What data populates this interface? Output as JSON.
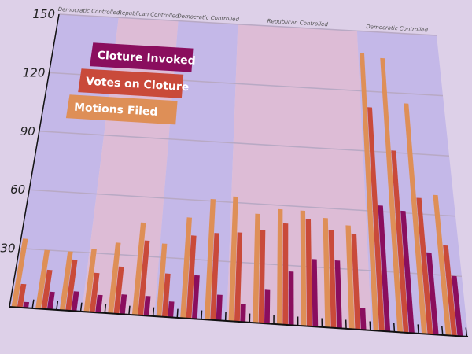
{
  "chart_data": {
    "type": "bar",
    "title": "",
    "xlabel": "",
    "ylabel": "",
    "ylim": [
      0,
      150
    ],
    "yticks": [
      30,
      60,
      90,
      120,
      150
    ],
    "grid": true,
    "legend_placement": "top-left",
    "series": [
      {
        "name": "Motions Filed",
        "color": "#de8f57",
        "values": [
          35,
          30,
          30,
          32,
          36,
          47,
          37,
          51,
          61,
          63,
          55,
          58,
          58,
          55,
          52,
          139,
          137,
          115,
          70
        ]
      },
      {
        "name": "Votes on Cloture",
        "color": "#c94a3a",
        "values": [
          12,
          20,
          26,
          20,
          24,
          38,
          22,
          42,
          44,
          45,
          47,
          51,
          54,
          49,
          48,
          112,
          91,
          68,
          45
        ]
      },
      {
        "name": "Cloture Invoked",
        "color": "#8a0e5e",
        "values": [
          3,
          9,
          10,
          9,
          10,
          10,
          8,
          22,
          13,
          9,
          17,
          27,
          34,
          34,
          11,
          63,
          61,
          41,
          30
        ]
      }
    ],
    "legend_order": [
      "Cloture Invoked",
      "Votes on Cloture",
      "Motions Filed"
    ],
    "bands": [
      {
        "label": "Democratic Controlled",
        "from": 0,
        "to": 3,
        "color": "#c4b8e8"
      },
      {
        "label": "Republican Controlled",
        "from": 3,
        "to": 6,
        "color": "#ddbcd6"
      },
      {
        "label": "Democratic Controlled",
        "from": 6,
        "to": 9,
        "color": "#c4b8e8"
      },
      {
        "label": "Republican Controlled",
        "from": 9,
        "to": 15,
        "color": "#ddbcd6"
      },
      {
        "label": "Democratic Controlled",
        "from": 15,
        "to": 19,
        "color": "#c4b8e8"
      }
    ]
  }
}
